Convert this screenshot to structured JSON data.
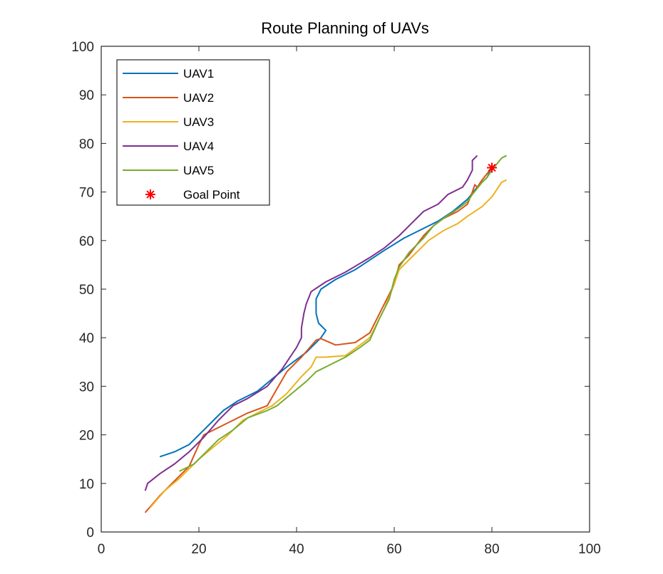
{
  "chart_data": {
    "type": "line",
    "title": "Route Planning of UAVs",
    "xlabel": "",
    "ylabel": "",
    "xlim": [
      0,
      100
    ],
    "ylim": [
      0,
      100
    ],
    "xticks": [
      0,
      20,
      40,
      60,
      80,
      100
    ],
    "yticks": [
      0,
      10,
      20,
      30,
      40,
      50,
      60,
      70,
      80,
      90,
      100
    ],
    "grid": false,
    "legend_position": "top-left",
    "series": [
      {
        "name": "UAV1",
        "color": "#0072BD",
        "points": [
          [
            12,
            15.5
          ],
          [
            15,
            16.5
          ],
          [
            18,
            18
          ],
          [
            21,
            21
          ],
          [
            25,
            25
          ],
          [
            28,
            27
          ],
          [
            32,
            29
          ],
          [
            35,
            31.5
          ],
          [
            38,
            34
          ],
          [
            42,
            37
          ],
          [
            45,
            40
          ],
          [
            46,
            41.5
          ],
          [
            45.5,
            42
          ],
          [
            44.5,
            43
          ],
          [
            44,
            45
          ],
          [
            44,
            48
          ],
          [
            45,
            50
          ],
          [
            48,
            52
          ],
          [
            52,
            54
          ],
          [
            55,
            56
          ],
          [
            58,
            58
          ],
          [
            62,
            60.5
          ],
          [
            65,
            62
          ],
          [
            69,
            64
          ],
          [
            72,
            66
          ],
          [
            75,
            68.5
          ],
          [
            77,
            71
          ],
          [
            79,
            73
          ],
          [
            80,
            75
          ]
        ]
      },
      {
        "name": "UAV2",
        "color": "#D95319",
        "points": [
          [
            9,
            4
          ],
          [
            12,
            7.5
          ],
          [
            15,
            10.5
          ],
          [
            18,
            13.5
          ],
          [
            20,
            18
          ],
          [
            21,
            20
          ],
          [
            24,
            21.5
          ],
          [
            27,
            23
          ],
          [
            30,
            24.5
          ],
          [
            34,
            26
          ],
          [
            36,
            29.5
          ],
          [
            38,
            33
          ],
          [
            41,
            36
          ],
          [
            44,
            39.5
          ],
          [
            45,
            39.8
          ],
          [
            48,
            38.5
          ],
          [
            52,
            39
          ],
          [
            55,
            41
          ],
          [
            57,
            45
          ],
          [
            60,
            51
          ],
          [
            61,
            55
          ],
          [
            63,
            57
          ],
          [
            66,
            61
          ],
          [
            68,
            63
          ],
          [
            70,
            64.5
          ],
          [
            73,
            66
          ],
          [
            75,
            67.5
          ],
          [
            76,
            70
          ],
          [
            76.5,
            71.5
          ],
          [
            77,
            71
          ],
          [
            78,
            72.5
          ],
          [
            80,
            75
          ]
        ]
      },
      {
        "name": "UAV3",
        "color": "#EDB120",
        "points": [
          [
            10,
            5
          ],
          [
            13,
            8.5
          ],
          [
            16,
            11
          ],
          [
            18,
            13
          ],
          [
            20,
            15
          ],
          [
            23,
            17.5
          ],
          [
            26,
            20
          ],
          [
            29,
            23
          ],
          [
            32,
            24.5
          ],
          [
            35,
            26
          ],
          [
            38,
            28.5
          ],
          [
            41,
            32
          ],
          [
            43,
            34
          ],
          [
            44,
            36
          ],
          [
            46,
            36
          ],
          [
            50,
            36.3
          ],
          [
            53,
            38.5
          ],
          [
            55,
            40
          ],
          [
            58,
            46
          ],
          [
            60,
            51
          ],
          [
            61,
            54
          ],
          [
            64,
            57
          ],
          [
            67,
            60
          ],
          [
            70,
            62
          ],
          [
            73,
            63.5
          ],
          [
            75,
            65
          ],
          [
            78,
            67
          ],
          [
            80,
            69
          ],
          [
            82,
            72
          ],
          [
            83,
            72.5
          ]
        ]
      },
      {
        "name": "UAV4",
        "color": "#7E2F8E",
        "points": [
          [
            9,
            8.5
          ],
          [
            9.5,
            10
          ],
          [
            12,
            12
          ],
          [
            15,
            14
          ],
          [
            18,
            16.5
          ],
          [
            21,
            19.5
          ],
          [
            24,
            23
          ],
          [
            27,
            26
          ],
          [
            30,
            27.5
          ],
          [
            34,
            30
          ],
          [
            37,
            33.5
          ],
          [
            40,
            38
          ],
          [
            41,
            40
          ],
          [
            41,
            42
          ],
          [
            41.5,
            45
          ],
          [
            42,
            47
          ],
          [
            43,
            49.5
          ],
          [
            46,
            51.5
          ],
          [
            50,
            53.5
          ],
          [
            55,
            56.5
          ],
          [
            58,
            58.5
          ],
          [
            61,
            61
          ],
          [
            63,
            63
          ],
          [
            66,
            66
          ],
          [
            69,
            67.5
          ],
          [
            71,
            69.5
          ],
          [
            74,
            71
          ],
          [
            75,
            72.5
          ],
          [
            76,
            74.5
          ],
          [
            76,
            76.5
          ],
          [
            77,
            77.5
          ]
        ]
      },
      {
        "name": "UAV5",
        "color": "#77AC30",
        "points": [
          [
            16,
            12.5
          ],
          [
            19,
            14
          ],
          [
            21,
            16
          ],
          [
            24,
            19
          ],
          [
            27,
            21
          ],
          [
            30,
            23.5
          ],
          [
            34,
            25
          ],
          [
            36,
            26
          ],
          [
            39,
            28.5
          ],
          [
            42,
            31
          ],
          [
            44,
            33
          ],
          [
            47,
            34.5
          ],
          [
            50,
            36
          ],
          [
            53,
            38
          ],
          [
            55,
            39.5
          ],
          [
            57,
            44
          ],
          [
            59,
            48
          ],
          [
            60,
            52
          ],
          [
            61,
            54.5
          ],
          [
            63,
            57.5
          ],
          [
            66,
            60.5
          ],
          [
            68,
            63
          ],
          [
            70,
            64.5
          ],
          [
            73,
            66.5
          ],
          [
            75,
            68
          ],
          [
            76,
            69.5
          ],
          [
            78,
            72
          ],
          [
            79,
            73
          ],
          [
            80,
            74.5
          ],
          [
            82,
            77
          ],
          [
            83,
            77.5
          ]
        ]
      }
    ],
    "markers": [
      {
        "name": "Goal Point",
        "color": "#FF0000",
        "symbol": "*",
        "x": 80,
        "y": 75
      }
    ]
  }
}
